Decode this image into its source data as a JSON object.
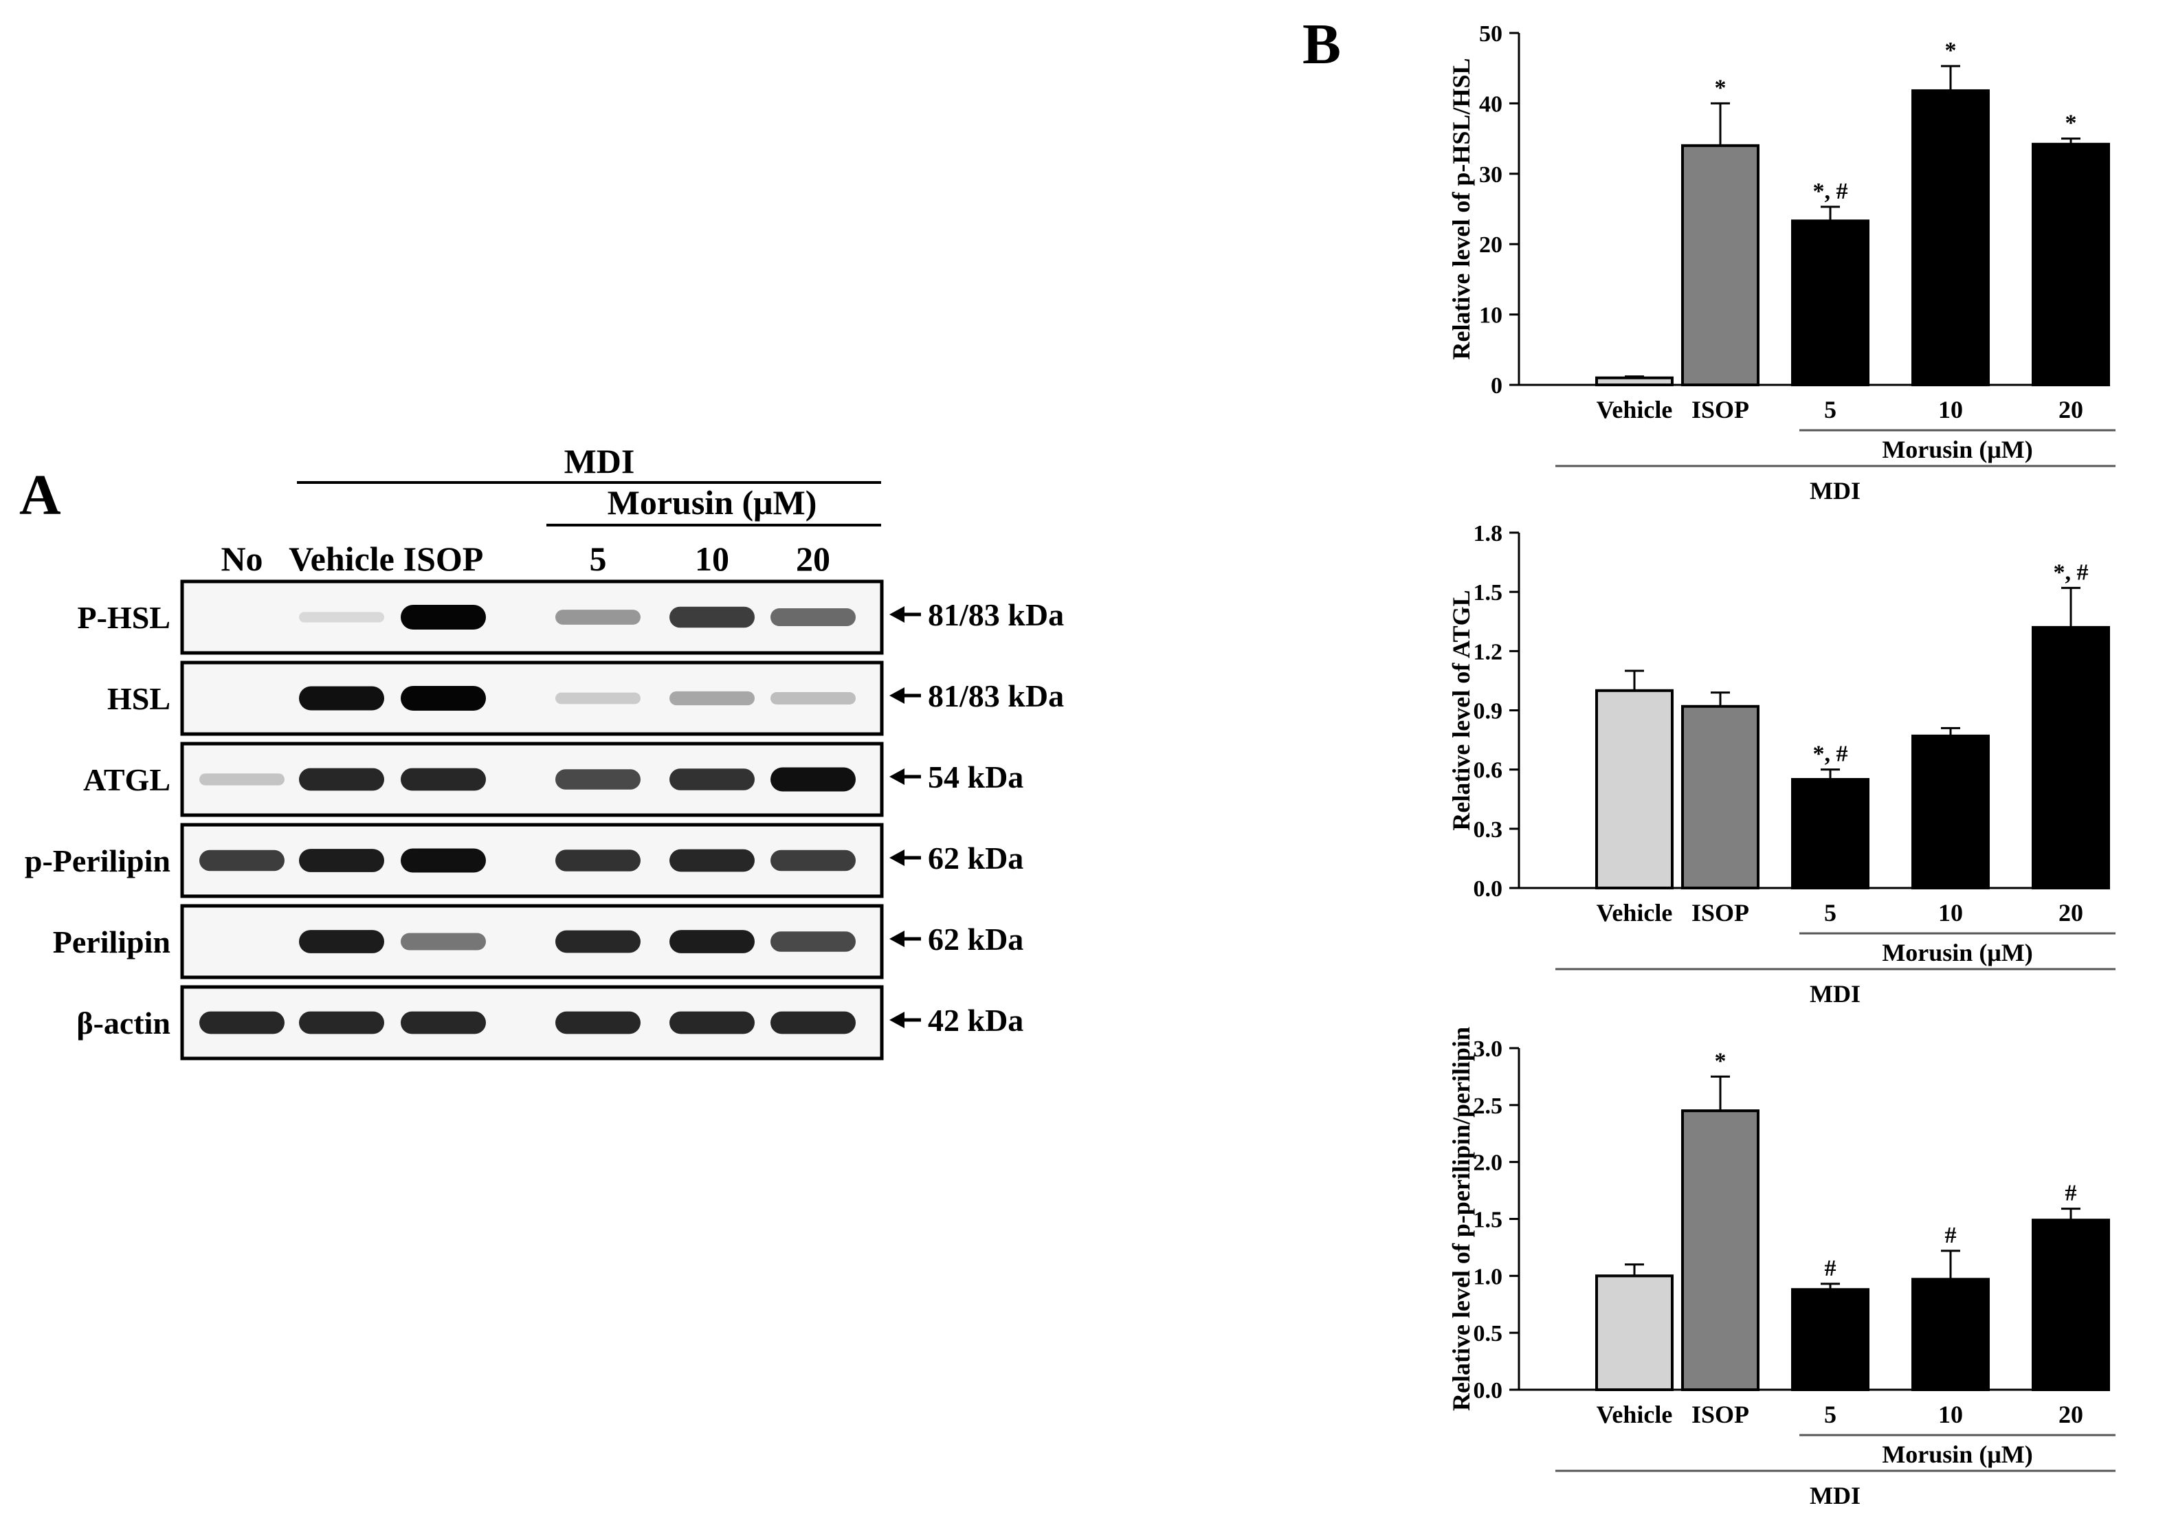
{
  "panel_a": {
    "letter": "A",
    "group_label": "MDI",
    "morusin_label": "Morusin (μM)",
    "lanes": [
      "No",
      "Vehicle",
      "ISOP",
      "5",
      "10",
      "20"
    ],
    "blots": [
      {
        "label": "P-HSL",
        "size": "81/83 kDa",
        "intensity": [
          0,
          0.06,
          1.0,
          0.35,
          0.75,
          0.55
        ]
      },
      {
        "label": "HSL",
        "size": "81/83 kDa",
        "intensity": [
          0,
          0.95,
          1.0,
          0.12,
          0.28,
          0.18
        ]
      },
      {
        "label": "ATGL",
        "size": "54 kDa",
        "intensity": [
          0.15,
          0.85,
          0.85,
          0.7,
          0.8,
          0.95
        ]
      },
      {
        "label": "p-Perilipin",
        "size": "62 kDa",
        "intensity": [
          0.75,
          0.9,
          0.95,
          0.8,
          0.85,
          0.75
        ]
      },
      {
        "label": "Perilipin",
        "size": "62 kDa",
        "intensity": [
          0,
          0.9,
          0.5,
          0.85,
          0.9,
          0.7
        ]
      },
      {
        "label": "β-actin",
        "size": "42 kDa",
        "intensity": [
          0.85,
          0.85,
          0.85,
          0.85,
          0.85,
          0.85
        ]
      }
    ]
  },
  "panel_b_letter": "B",
  "colors": {
    "vehicle": "#d3d3d3",
    "isop": "#808080",
    "morusin": "#000000"
  },
  "chart_data": [
    {
      "type": "bar",
      "ylabel": "Relative level of p-HSL/HSL",
      "ylim": [
        0,
        50
      ],
      "yticks": [
        "0",
        "10",
        "20",
        "30",
        "40",
        "50"
      ],
      "categories": [
        "Vehicle",
        "ISOP",
        "5",
        "10",
        "20"
      ],
      "values": [
        1.0,
        34.0,
        23.3,
        41.8,
        34.2
      ],
      "errors": [
        0.2,
        6.0,
        2.0,
        3.5,
        0.8
      ],
      "annotations": [
        "",
        "*",
        "*, #",
        "*",
        "*"
      ],
      "subgroup_label": "Morusin (μM)",
      "group_label": "MDI"
    },
    {
      "type": "bar",
      "ylabel": "Relative level of ATGL",
      "ylim": [
        0,
        1.8
      ],
      "yticks": [
        "0.0",
        "0.3",
        "0.6",
        "0.9",
        "1.2",
        "1.5",
        "1.8"
      ],
      "categories": [
        "Vehicle",
        "ISOP",
        "5",
        "10",
        "20"
      ],
      "values": [
        1.0,
        0.92,
        0.55,
        0.77,
        1.32
      ],
      "errors": [
        0.1,
        0.07,
        0.05,
        0.04,
        0.2
      ],
      "annotations": [
        "",
        "",
        "*, #",
        "",
        "*, #"
      ],
      "subgroup_label": "Morusin (μM)",
      "group_label": "MDI"
    },
    {
      "type": "bar",
      "ylabel": "Relative level of p-perilipin/perilipin",
      "ylim": [
        0,
        3.0
      ],
      "yticks": [
        "0.0",
        "0.5",
        "1.0",
        "1.5",
        "2.0",
        "2.5",
        "3.0"
      ],
      "categories": [
        "Vehicle",
        "ISOP",
        "5",
        "10",
        "20"
      ],
      "values": [
        1.0,
        2.45,
        0.88,
        0.97,
        1.49
      ],
      "errors": [
        0.1,
        0.3,
        0.05,
        0.25,
        0.1
      ],
      "annotations": [
        "",
        "*",
        "#",
        "#",
        "#"
      ],
      "subgroup_label": "Morusin (μM)",
      "group_label": "MDI"
    }
  ]
}
